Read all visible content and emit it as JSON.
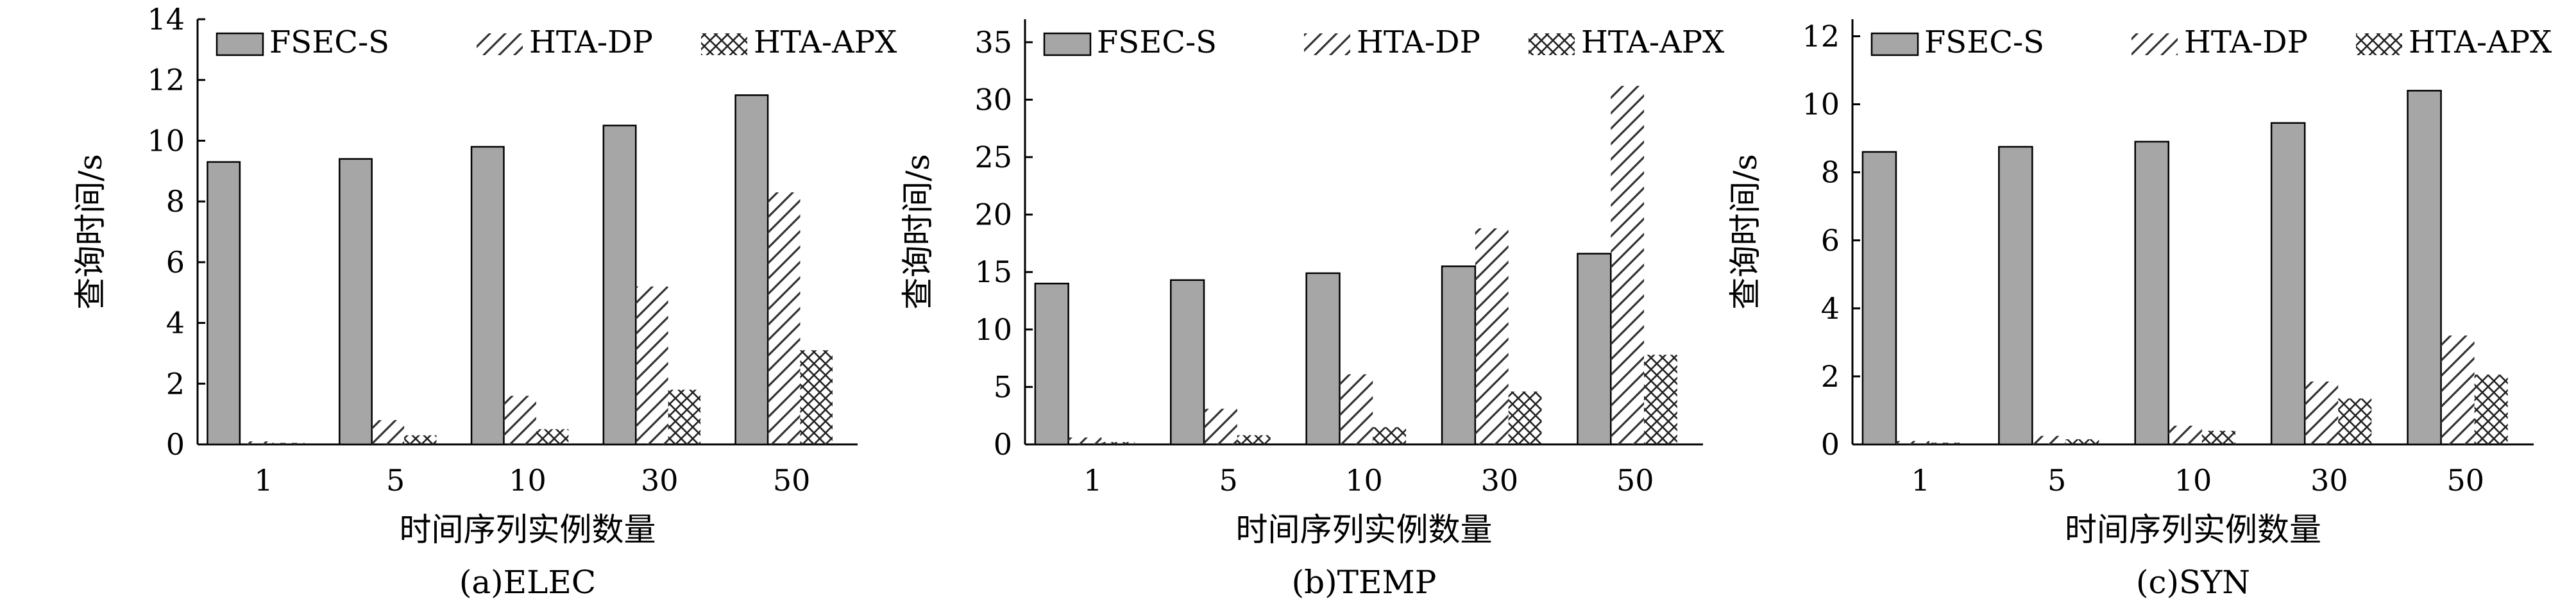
{
  "chart_data": [
    {
      "type": "bar",
      "title": "(a)ELEC",
      "xlabel": "时间序列实例数量",
      "ylabel": "查询时间/s",
      "categories": [
        "1",
        "5",
        "10",
        "30",
        "50"
      ],
      "ylim": [
        0,
        14
      ],
      "yticks": [
        0,
        2,
        4,
        6,
        8,
        10,
        12,
        14
      ],
      "legend": "top",
      "series": [
        {
          "name": "FSEC-S",
          "values": [
            9.3,
            9.4,
            9.8,
            10.5,
            11.5
          ]
        },
        {
          "name": "HTA-DP",
          "values": [
            0.1,
            0.8,
            1.6,
            5.2,
            8.3
          ]
        },
        {
          "name": "HTA-APX",
          "values": [
            0.05,
            0.3,
            0.5,
            1.8,
            3.1
          ]
        }
      ]
    },
    {
      "type": "bar",
      "title": "(b)TEMP",
      "xlabel": "时间序列实例数量",
      "ylabel": "查询时间/s",
      "categories": [
        "1",
        "5",
        "10",
        "30",
        "50"
      ],
      "ylim": [
        0,
        37
      ],
      "yticks": [
        0,
        5,
        10,
        15,
        20,
        25,
        30,
        35
      ],
      "legend": "top",
      "series": [
        {
          "name": "FSEC-S",
          "values": [
            14,
            14.3,
            14.9,
            15.5,
            16.6
          ]
        },
        {
          "name": "HTA-DP",
          "values": [
            0.6,
            3.1,
            6.1,
            18.8,
            31.2
          ]
        },
        {
          "name": "HTA-APX",
          "values": [
            0.2,
            0.8,
            1.5,
            4.6,
            7.8
          ]
        }
      ]
    },
    {
      "type": "bar",
      "title": "(c)SYN",
      "xlabel": "时间序列实例数量",
      "ylabel": "查询时间/s",
      "categories": [
        "1",
        "5",
        "10",
        "30",
        "50"
      ],
      "ylim": [
        0,
        12.5
      ],
      "yticks": [
        0,
        2,
        4,
        6,
        8,
        10,
        12
      ],
      "legend": "top",
      "series": [
        {
          "name": "FSEC-S",
          "values": [
            8.6,
            8.75,
            8.9,
            9.45,
            10.4
          ]
        },
        {
          "name": "HTA-DP",
          "values": [
            0.1,
            0.25,
            0.55,
            1.85,
            3.2
          ]
        },
        {
          "name": "HTA-APX",
          "values": [
            0.05,
            0.15,
            0.4,
            1.35,
            2.05
          ]
        }
      ]
    }
  ],
  "colors": {
    "fsec_fill": "#a6a6a6",
    "stroke": "#000000",
    "hatch": "#333333"
  }
}
